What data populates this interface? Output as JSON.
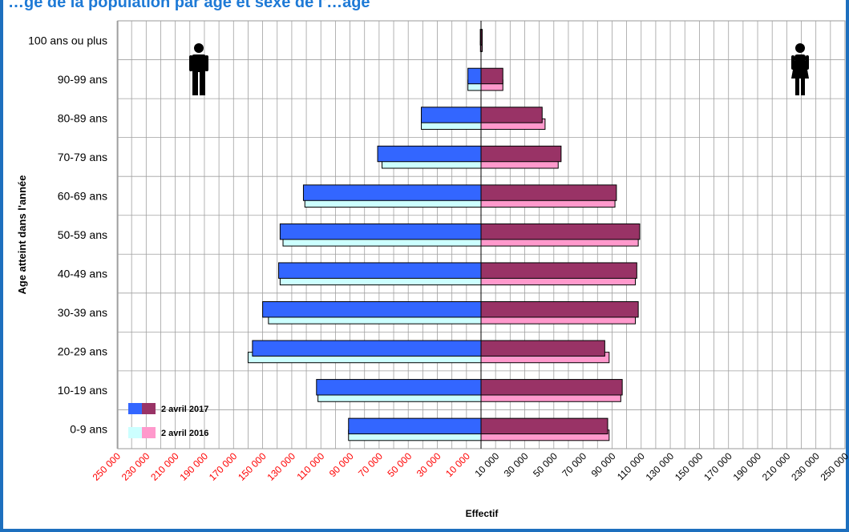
{
  "chart_data": {
    "type": "bar",
    "subtype": "population-pyramid",
    "title": "…ge de la population par âge et sexe de l'…age",
    "xlabel": "Effectif",
    "ylabel": "Age atteint dans l'année",
    "categories": [
      "0-9 ans",
      "10-19 ans",
      "20-29 ans",
      "30-39 ans",
      "40-49 ans",
      "50-59 ans",
      "60-69 ans",
      "70-79 ans",
      "80-89 ans",
      "90-99 ans",
      "100 ans ou plus"
    ],
    "x_ticks_left": [
      "250 000",
      "230 000",
      "210 000",
      "190 000",
      "170 000",
      "150 000",
      "130 000",
      "110 000",
      "90 000",
      "70 000",
      "50 000",
      "30 000",
      "10 000"
    ],
    "x_ticks_right": [
      "10 000",
      "30 000",
      "50 000",
      "70 000",
      "90 000",
      "110 000",
      "130 000",
      "150 000",
      "170 000",
      "190 000",
      "210 000",
      "230 000",
      "250 000"
    ],
    "x_range": [
      -250000,
      250000
    ],
    "grid": true,
    "legend_position": "bottom-left",
    "legend": [
      {
        "label": "2 avril 2017",
        "colors": [
          "#3366ff",
          "#993366"
        ]
      },
      {
        "label": "2 avril 2016",
        "colors": [
          "#ccffff",
          "#ff99cc"
        ]
      }
    ],
    "series": [
      {
        "sex": "male",
        "year": "2017",
        "color": "#3366ff",
        "values": [
          91000,
          113000,
          157000,
          150000,
          139000,
          138000,
          122000,
          71000,
          41000,
          9000,
          500
        ]
      },
      {
        "sex": "male",
        "year": "2016",
        "color": "#ccffff",
        "values": [
          91000,
          112000,
          160000,
          146000,
          138000,
          136000,
          121000,
          68000,
          41000,
          9000,
          400
        ]
      },
      {
        "sex": "female",
        "year": "2017",
        "color": "#993366",
        "values": [
          87000,
          97000,
          85000,
          108000,
          107000,
          109000,
          93000,
          55000,
          42000,
          15000,
          700
        ]
      },
      {
        "sex": "female",
        "year": "2016",
        "color": "#ff99cc",
        "values": [
          88000,
          96000,
          88000,
          106000,
          106000,
          108000,
          92000,
          53000,
          44000,
          15000,
          600
        ]
      }
    ],
    "icons": [
      "male-figure-icon",
      "female-figure-icon"
    ],
    "tick_label_colors": {
      "left": "#ff0000",
      "right": "#000000"
    }
  }
}
